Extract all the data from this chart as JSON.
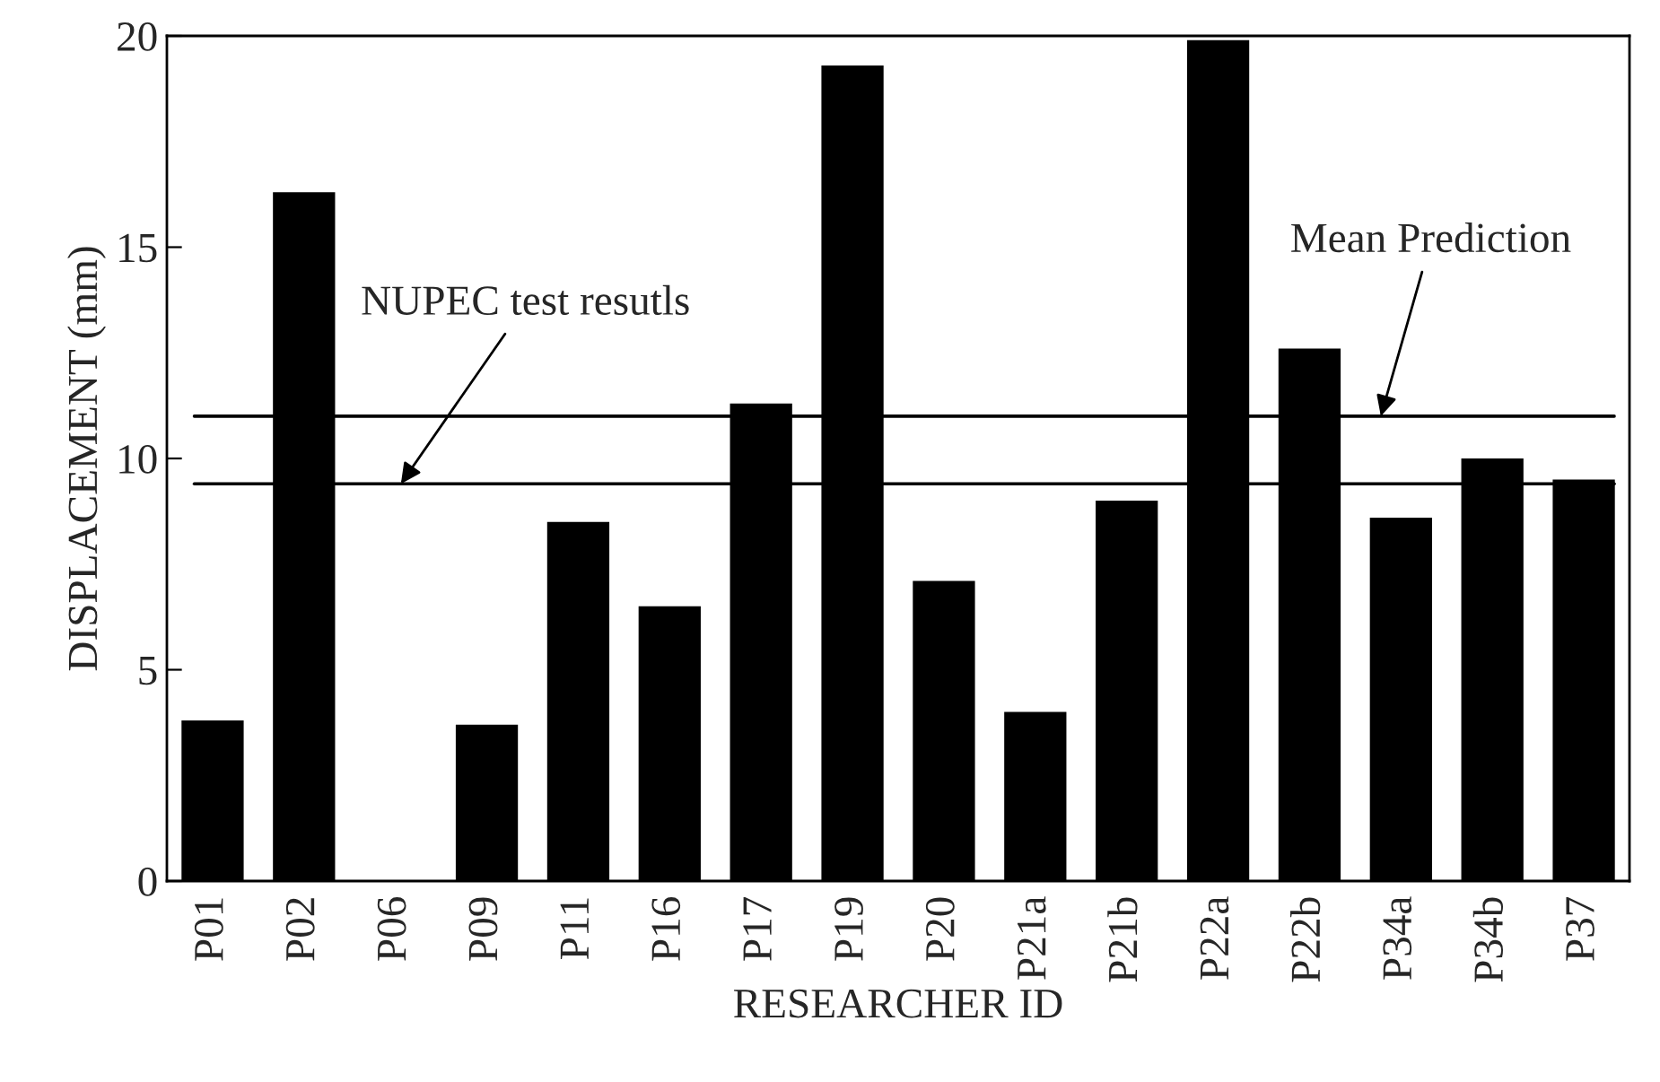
{
  "chart_data": {
    "type": "bar",
    "xlabel": "RESEARCHER ID",
    "ylabel": "DISPLACEMENT (mm)",
    "categories": [
      "P01",
      "P02",
      "P06",
      "P09",
      "P11",
      "P16",
      "P17",
      "P19",
      "P20",
      "P21a",
      "P21b",
      "P22a",
      "P22b",
      "P34a",
      "P34b",
      "P37"
    ],
    "values": [
      3.8,
      16.3,
      0,
      3.7,
      8.5,
      6.5,
      11.3,
      19.3,
      7.1,
      4.0,
      9.0,
      19.9,
      12.6,
      8.6,
      10.0,
      9.5
    ],
    "color": "#000000",
    "ylim": [
      0,
      20
    ],
    "yticks": [
      0,
      5,
      10,
      15,
      20
    ],
    "ref_lines": [
      {
        "axis": "y",
        "value": 9.4,
        "color": "#000000",
        "label": "NUPEC test resutls"
      },
      {
        "axis": "y",
        "value": 11.0,
        "color": "#000000",
        "label": "Mean Prediction"
      }
    ],
    "grid": false,
    "legend": false
  }
}
